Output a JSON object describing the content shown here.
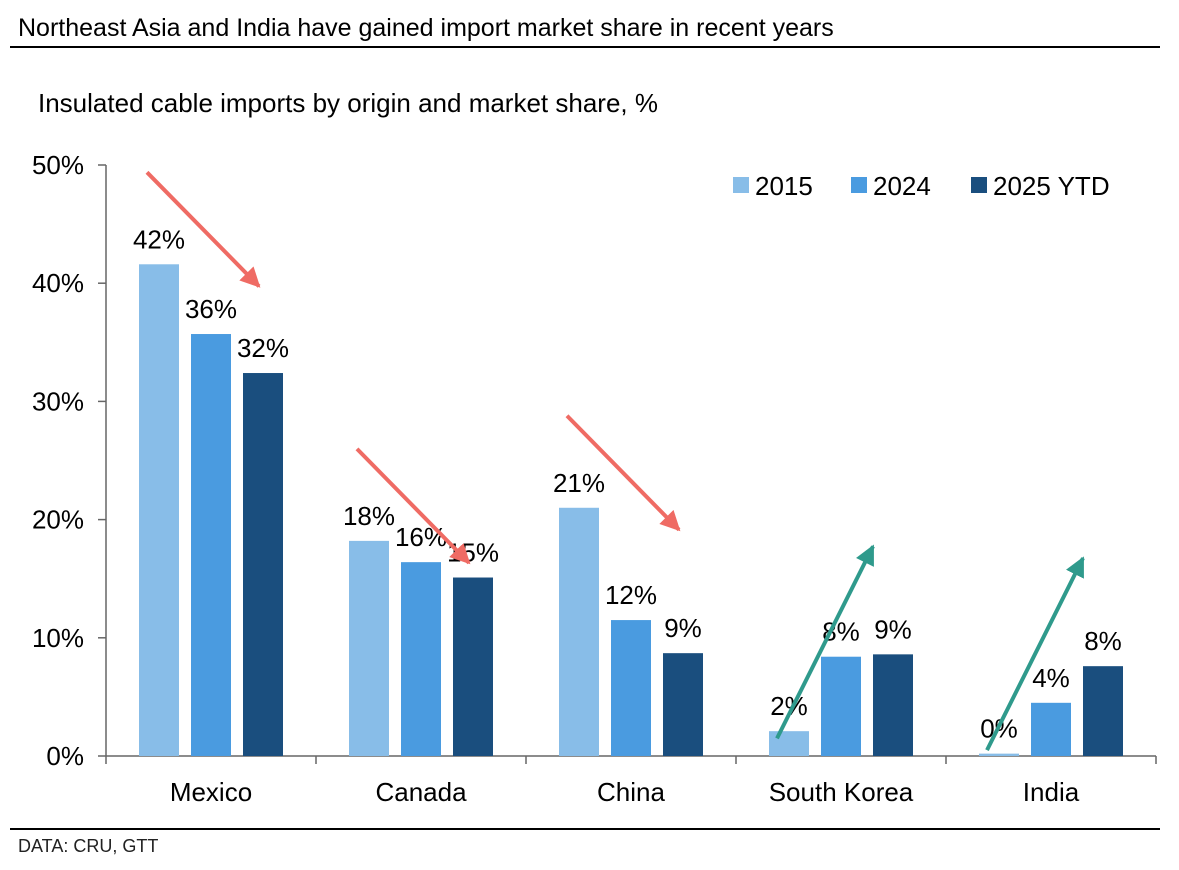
{
  "header": {
    "headline": "Northeast Asia and India have gained import market share in recent years",
    "subtitle": "Insulated cable imports by origin and market share, %"
  },
  "footer": {
    "source": "DATA: CRU, GTT"
  },
  "colors": {
    "s2015": "#88bde8",
    "s2024": "#4a9be0",
    "s2025": "#1a4e7e",
    "down_arrow": "#ef6b64",
    "up_arrow": "#2f9a8c",
    "axis": "#666666"
  },
  "chart_data": {
    "type": "bar",
    "title": "Insulated cable imports by origin and market share, %",
    "xlabel": "",
    "ylabel": "",
    "ylim": [
      0,
      50
    ],
    "yticks": [
      0,
      10,
      20,
      30,
      40,
      50
    ],
    "ytick_labels": [
      "0%",
      "10%",
      "20%",
      "30%",
      "40%",
      "50%"
    ],
    "categories": [
      "Mexico",
      "Canada",
      "China",
      "South Korea",
      "India"
    ],
    "series": [
      {
        "name": "2015",
        "values": [
          41.6,
          18.2,
          21.0,
          2.1,
          0.2
        ],
        "labels": [
          "42%",
          "18%",
          "21%",
          "2%",
          "0%"
        ]
      },
      {
        "name": "2024",
        "values": [
          35.7,
          16.4,
          11.5,
          8.4,
          4.5
        ],
        "labels": [
          "36%",
          "16%",
          "12%",
          "8%",
          "4%"
        ]
      },
      {
        "name": "2025 YTD",
        "values": [
          32.4,
          15.1,
          8.7,
          8.6,
          7.6
        ],
        "labels": [
          "32%",
          "15%",
          "9%",
          "9%",
          "8%"
        ]
      }
    ],
    "trend_arrows": [
      "down",
      "down",
      "down",
      "up",
      "up"
    ],
    "legend_position": "top-right",
    "grid": false
  }
}
